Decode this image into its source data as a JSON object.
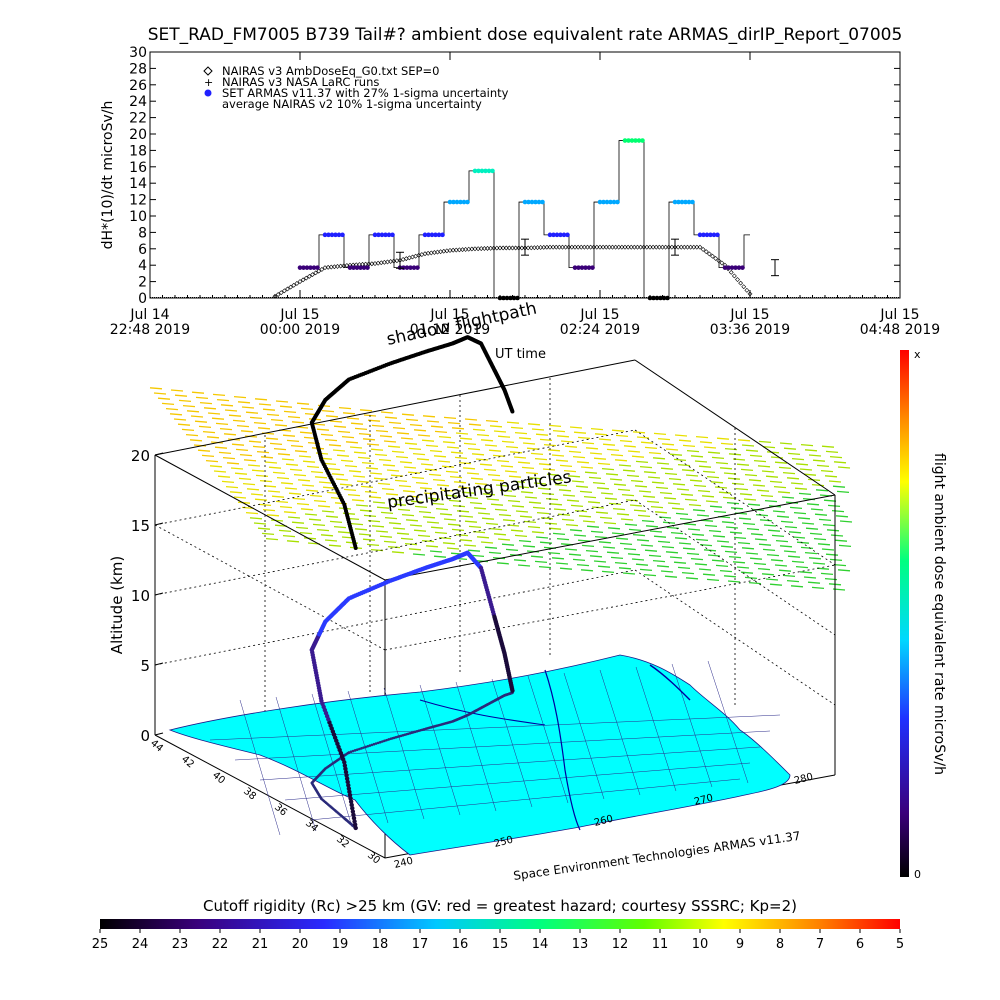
{
  "title": "SET_RAD_FM7005   B739 Tail#? ambient dose equivalent rate ARMAS_dirIP_Report_07005",
  "colors": {
    "armas_blue": "#2020ff",
    "ocean": "#ffffff",
    "land": "#00ffff",
    "flight_track": "#000000",
    "colorbar_stops": [
      "#000000",
      "#3a007a",
      "#2a2aff",
      "#00c8ff",
      "#00ff80",
      "#ffff00",
      "#ff7a00",
      "#ff0000"
    ]
  },
  "chart_data": [
    {
      "type": "scatter",
      "ylabel": "dH*(10)/dt microSv/h",
      "ylim": [
        0,
        30
      ],
      "y_ticks": [
        0,
        2,
        4,
        6,
        8,
        10,
        12,
        14,
        16,
        18,
        20,
        22,
        24,
        26,
        28,
        30
      ],
      "x_ticks": [
        {
          "top": "Jul 14",
          "bottom": "22:48  2019"
        },
        {
          "top": "Jul 15",
          "bottom": "00:00  2019"
        },
        {
          "top": "Jul 15",
          "bottom": "01:12  2019"
        },
        {
          "top": "Jul 15",
          "bottom": "02:24  2019"
        },
        {
          "top": "Jul 15",
          "bottom": "03:36  2019"
        },
        {
          "top": "Jul 15",
          "bottom": "04:48  2019"
        }
      ],
      "xlim_hours": [
        -1.2,
        4.8
      ],
      "legend": [
        {
          "symbol": "diamond",
          "label": "NAIRAS v3 AmbDoseEq_G0.txt SEP=0"
        },
        {
          "symbol": "plus",
          "label": "NAIRAS v3 NASA LaRC runs"
        },
        {
          "symbol": "dot",
          "label": "SET ARMAS v11.37 with 27% 1-sigma uncertainty"
        },
        {
          "symbol": "none",
          "label": "average NAIRAS v2 10% 1-sigma uncertainty"
        }
      ],
      "series": [
        {
          "name": "NAIRAS v3 AmbDoseEq_G0.txt SEP=0",
          "x_hours": [
            -0.2,
            0.0,
            0.2,
            0.4,
            0.6,
            0.8,
            1.0,
            1.2,
            1.4,
            1.6,
            1.8,
            2.0,
            2.2,
            2.4,
            2.6,
            2.8,
            3.0,
            3.2,
            3.4,
            3.6
          ],
          "values": [
            0.2,
            2.0,
            3.7,
            4.0,
            4.2,
            4.6,
            5.4,
            5.8,
            6.0,
            6.1,
            6.1,
            6.2,
            6.2,
            6.2,
            6.2,
            6.2,
            6.2,
            6.2,
            4.0,
            0.5
          ]
        },
        {
          "name": "SET ARMAS v11.37 with 27% 1-sigma uncertainty",
          "x_hours": [
            0.0,
            0.2,
            0.4,
            0.6,
            0.8,
            1.0,
            1.2,
            1.4,
            1.6,
            1.8,
            2.0,
            2.2,
            2.4,
            2.6,
            2.8,
            3.0,
            3.2,
            3.4,
            3.6
          ],
          "values": [
            3.7,
            7.7,
            3.7,
            7.7,
            3.7,
            7.7,
            11.7,
            15.5,
            0.0,
            11.7,
            7.7,
            3.7,
            11.7,
            19.2,
            0.0,
            11.7,
            7.7,
            3.7,
            7.7
          ]
        }
      ]
    },
    {
      "type": "surface-3d",
      "zlabel": "Altitude (km)",
      "z_ticks": [
        0,
        5,
        10,
        15,
        20
      ],
      "lat_ticks": [
        44,
        42,
        40,
        38,
        36,
        34,
        32,
        30
      ],
      "lon_ticks": [
        240,
        250,
        260,
        270,
        280
      ],
      "annotations": [
        "shadow flightpath",
        "UT time",
        "precipitating particles",
        "Space Environment Technologies ARMAS v11.37"
      ],
      "colorbar_right": {
        "label": "flight ambient dose equivalent rate microSv/h",
        "top": "x",
        "bottom": "0"
      },
      "flight_track": {
        "lon": [
          242.0,
          242.5,
          243.5,
          245.0,
          248.0,
          252.0,
          257.0,
          261.0,
          264.0,
          266.0,
          268.0,
          270.0,
          271.5,
          272.5
        ],
        "lat": [
          33.0,
          34.0,
          36.0,
          37.5,
          38.5,
          39.5,
          40.0,
          40.3,
          40.5,
          40.8,
          41.2,
          41.6,
          41.9,
          42.0
        ],
        "alt_km": [
          0.0,
          4.0,
          7.0,
          9.5,
          10.5,
          11.0,
          11.3,
          11.5,
          11.6,
          11.6,
          10.0,
          6.0,
          3.0,
          0.0
        ]
      }
    },
    {
      "type": "colorbar",
      "label": "Cutoff rigidity (Rc) >25 km (GV: red = greatest hazard; courtesy SSSRC; Kp=2)",
      "ticks": [
        25,
        24,
        23,
        22,
        21,
        20,
        19,
        18,
        17,
        16,
        15,
        14,
        13,
        12,
        11,
        10,
        9,
        8,
        7,
        6,
        5
      ]
    }
  ]
}
